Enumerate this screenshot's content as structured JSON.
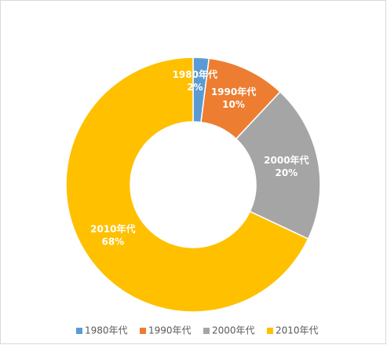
{
  "chart_data": {
    "type": "donut",
    "categories": [
      "1980年代",
      "1990年代",
      "2000年代",
      "2010年代"
    ],
    "values": [
      2,
      10,
      20,
      68
    ],
    "value_labels": [
      "2%",
      "10%",
      "20%",
      "68%"
    ],
    "colors": [
      "#5b9bd5",
      "#ed7d31",
      "#a5a5a5",
      "#ffc000"
    ],
    "legend": "bottom"
  }
}
